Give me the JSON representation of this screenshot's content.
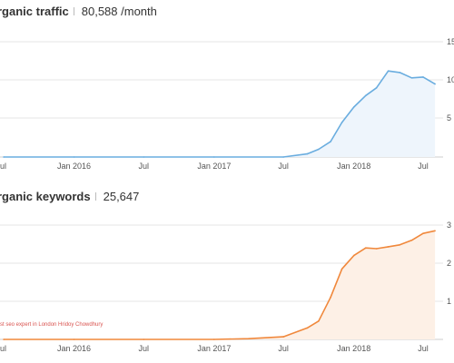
{
  "panels": {
    "traffic": {
      "title": "rganic traffic",
      "value": "80,588 /month"
    },
    "keywords": {
      "title": "rganic keywords",
      "value": "25,647"
    }
  },
  "colors": {
    "traffic_line": "#6aaddf",
    "traffic_fill": "#eef5fc",
    "keywords_line": "#f0883c",
    "keywords_fill": "#fdf0e6",
    "grid": "#e6e6e6",
    "axis_text": "#555555",
    "annotation": "#d9534f"
  },
  "chart_data": [
    {
      "type": "area",
      "name": "traffic",
      "title": "rganic traffic",
      "x_ticks": [
        "ul",
        "Jan 2016",
        "Jul",
        "Jan 2017",
        "Jul",
        "Jan 2018",
        "Jul"
      ],
      "y_ticks": [
        "15",
        "10",
        "5"
      ],
      "y_scale": [
        0,
        150000
      ],
      "grid": true,
      "x": [
        "2015-07-01",
        "2016-01-01",
        "2016-07-01",
        "2017-01-01",
        "2017-07-01",
        "2017-09-01",
        "2017-10-01",
        "2017-11-01",
        "2017-12-01",
        "2018-01-01",
        "2018-02-01",
        "2018-03-01",
        "2018-04-01",
        "2018-05-01",
        "2018-06-01",
        "2018-07-01",
        "2018-08-01"
      ],
      "y": [
        0,
        0,
        0,
        0,
        0,
        4000,
        10000,
        20000,
        45000,
        65000,
        80000,
        90000,
        112000,
        110000,
        103000,
        104000,
        95000
      ]
    },
    {
      "type": "area",
      "name": "keywords",
      "title": "rganic keywords",
      "x_ticks": [
        "ul",
        "Jan 2016",
        "Jul",
        "Jan 2017",
        "Jul",
        "Jan 2018",
        "Jul"
      ],
      "y_ticks": [
        "3",
        "2",
        "1"
      ],
      "y_scale": [
        0,
        30000
      ],
      "grid": true,
      "annotation": "st seo expert in London Hridoy Chowdhury",
      "x": [
        "2015-07-01",
        "2016-01-01",
        "2016-07-01",
        "2017-01-01",
        "2017-04-01",
        "2017-07-01",
        "2017-09-01",
        "2017-10-01",
        "2017-11-01",
        "2017-12-01",
        "2018-01-01",
        "2018-02-01",
        "2018-03-01",
        "2018-04-01",
        "2018-05-01",
        "2018-06-01",
        "2018-07-01",
        "2018-08-01"
      ],
      "y": [
        0,
        0,
        0,
        0,
        200,
        700,
        3000,
        4800,
        11000,
        18500,
        22000,
        24000,
        23800,
        24300,
        24800,
        26000,
        27800,
        28500
      ]
    }
  ]
}
